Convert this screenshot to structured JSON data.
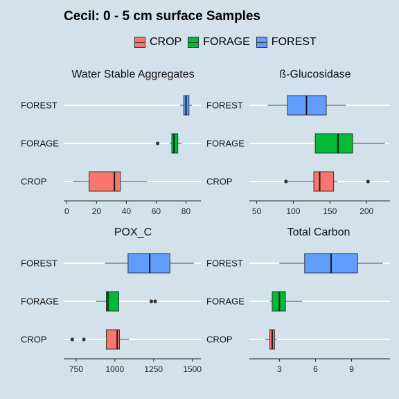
{
  "title": "Cecil: 0 - 5 cm surface Samples",
  "legend": [
    {
      "label": "CROP",
      "color": "#f8766d"
    },
    {
      "label": "FORAGE",
      "color": "#00ba38"
    },
    {
      "label": "FOREST",
      "color": "#619cff"
    }
  ],
  "chart_data": [
    {
      "type": "boxplot",
      "title": "Water Stable Aggregates",
      "categories": [
        "FOREST",
        "FORAGE",
        "CROP"
      ],
      "xlim": [
        -2,
        90
      ],
      "xticks": [
        0,
        20,
        40,
        60,
        80
      ],
      "grid": "horizontal",
      "boxes": [
        {
          "category": "FOREST",
          "min": 76,
          "q1": 78.5,
          "median": 80,
          "q3": 82,
          "max": 84,
          "outliers": []
        },
        {
          "category": "FORAGE",
          "min": 69,
          "q1": 70.5,
          "median": 72,
          "q3": 74.5,
          "max": 77,
          "outliers": [
            61
          ]
        },
        {
          "category": "CROP",
          "min": 4,
          "q1": 15,
          "median": 32,
          "q3": 36,
          "max": 54,
          "outliers": []
        }
      ]
    },
    {
      "type": "boxplot",
      "title": "ß-Glucosidase",
      "categories": [
        "FOREST",
        "FORAGE",
        "CROP"
      ],
      "xlim": [
        40,
        232
      ],
      "xticks": [
        50,
        100,
        150,
        200
      ],
      "grid": "horizontal",
      "boxes": [
        {
          "category": "FOREST",
          "min": 65,
          "q1": 92,
          "median": 118,
          "q3": 145,
          "max": 172,
          "outliers": []
        },
        {
          "category": "FORAGE",
          "min": 129,
          "q1": 130,
          "median": 161,
          "q3": 181,
          "max": 225,
          "outliers": []
        },
        {
          "category": "CROP",
          "min": 90,
          "q1": 128,
          "median": 136,
          "q3": 155,
          "max": 160,
          "outliers": [
            90,
            202
          ]
        }
      ]
    },
    {
      "type": "boxplot",
      "title": "POX_C",
      "categories": [
        "FOREST",
        "FORAGE",
        "CROP"
      ],
      "xlim": [
        670,
        1555
      ],
      "xticks": [
        750,
        1000,
        1250,
        1500
      ],
      "grid": "horizontal",
      "boxes": [
        {
          "category": "FOREST",
          "min": 935,
          "q1": 1085,
          "median": 1225,
          "q3": 1355,
          "max": 1510,
          "outliers": []
        },
        {
          "category": "FORAGE",
          "min": 880,
          "q1": 945,
          "median": 955,
          "q3": 1025,
          "max": 1025,
          "outliers": [
            1235,
            1260
          ]
        },
        {
          "category": "CROP",
          "min": 945,
          "q1": 945,
          "median": 1015,
          "q3": 1030,
          "max": 1090,
          "outliers": [
            725,
            800
          ]
        }
      ]
    },
    {
      "type": "boxplot",
      "title": "Total Carbon",
      "categories": [
        "FOREST",
        "FORAGE",
        "CROP"
      ],
      "xlim": [
        0.5,
        12.2
      ],
      "xticks": [
        3,
        6,
        9
      ],
      "grid": "horizontal",
      "boxes": [
        {
          "category": "FOREST",
          "min": 3,
          "q1": 5.1,
          "median": 7.3,
          "q3": 9.5,
          "max": 11.6,
          "outliers": []
        },
        {
          "category": "FORAGE",
          "min": 2.2,
          "q1": 2.4,
          "median": 3,
          "q3": 3.5,
          "max": 4.9,
          "outliers": []
        },
        {
          "category": "CROP",
          "min": 1.8,
          "q1": 2.2,
          "median": 2.4,
          "q3": 2.6,
          "max": 2.8,
          "outliers": []
        }
      ]
    }
  ]
}
